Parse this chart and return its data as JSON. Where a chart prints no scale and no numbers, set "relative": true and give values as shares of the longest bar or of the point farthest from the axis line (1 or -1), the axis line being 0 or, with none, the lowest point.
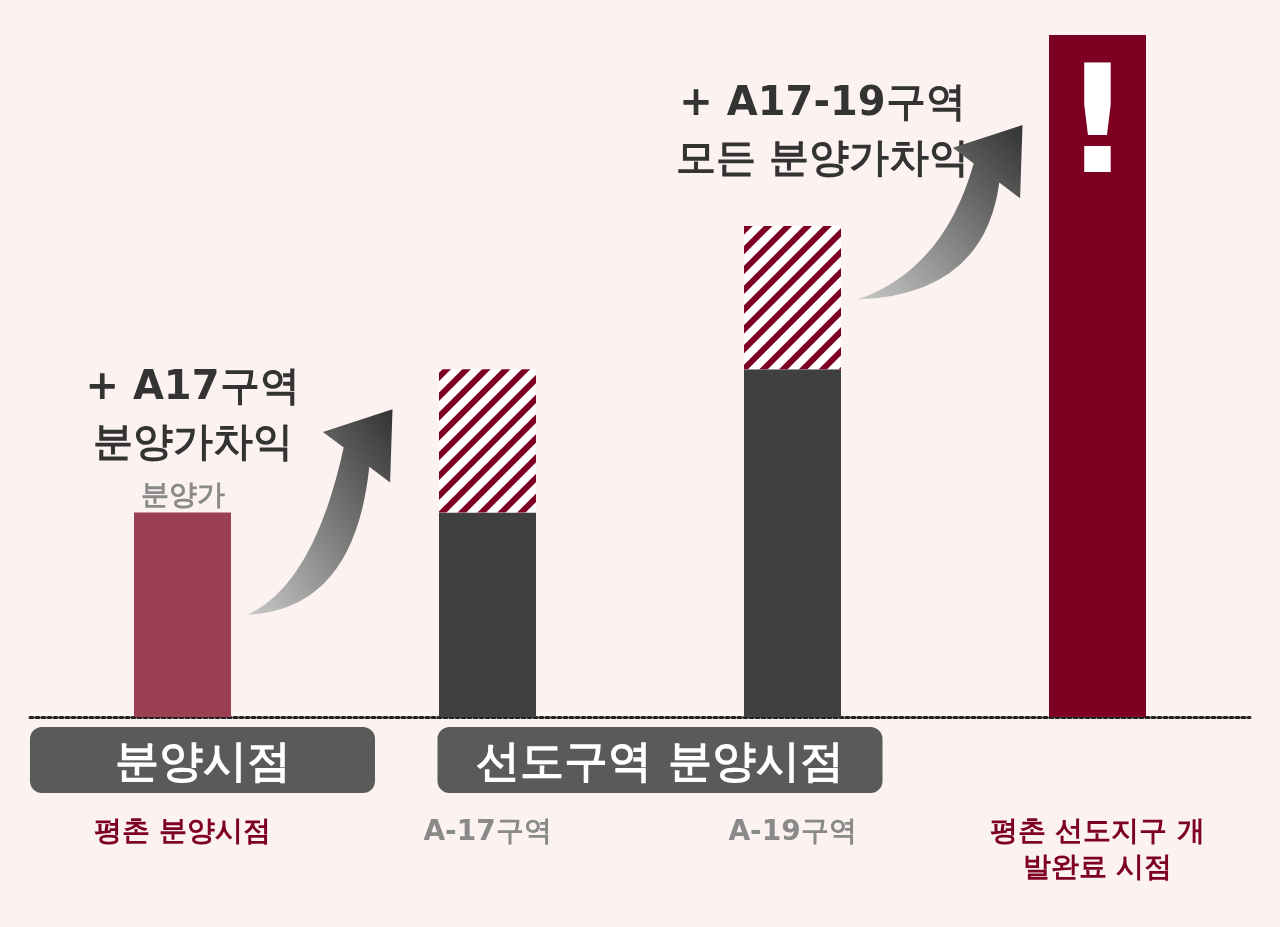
{
  "chart_data": {
    "type": "bar",
    "relative": true,
    "stacked": true,
    "categories": [
      "평촌 분양시점",
      "A-17구역",
      "A-19구역",
      "평촌 선도지구 개발완료 시점"
    ],
    "series": [
      {
        "values": [
          0.3,
          0.3,
          0.51,
          1
        ],
        "colors": [
          "#9b3f52",
          "#404040",
          "#404040",
          "#7d0022"
        ]
      },
      {
        "values": [
          null,
          0.21,
          0.21,
          null
        ],
        "color": "#7d0022"
      }
    ],
    "annotations": [
      {
        "text": "분양가",
        "x": "평촌 분양시점",
        "y": 0.3
      },
      "+ A17구역\n분양가차익",
      "+ A17-19구역\n모든 분양가차익",
      "!",
      "분양시점",
      "선도구역 분양시점"
    ]
  }
}
